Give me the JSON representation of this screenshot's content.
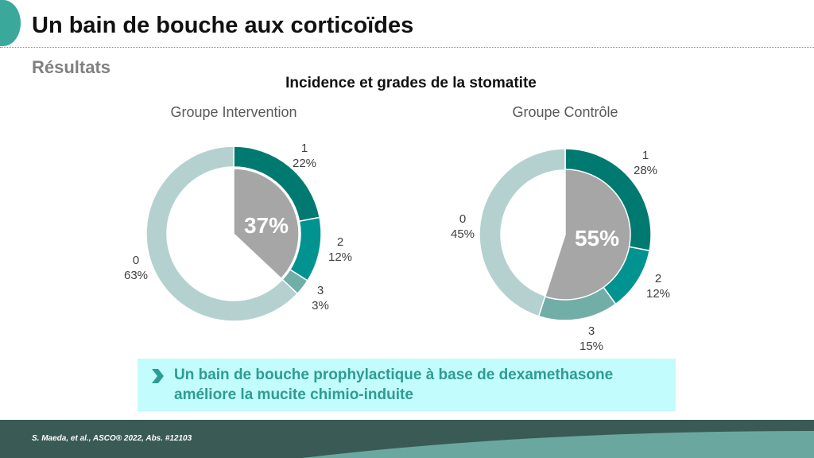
{
  "slide": {
    "title": "Un bain de bouche aux corticoïdes",
    "subtitle": "Résultats",
    "colors": {
      "accent": "#3aa89b",
      "dark_footer": "#3a5a55",
      "light_footer": "#6aa89f"
    }
  },
  "chart_data": {
    "type": "donut",
    "title": "Incidence et grades de la stomatite",
    "charts": [
      {
        "name": "Groupe Intervention",
        "center_value": "37%",
        "slices": [
          {
            "label": "1",
            "pct_label": "22%",
            "value": 22,
            "color": "#007a70"
          },
          {
            "label": "2",
            "pct_label": "12%",
            "value": 12,
            "color": "#009390"
          },
          {
            "label": "3",
            "pct_label": "3%",
            "value": 3,
            "color": "#72aea8"
          },
          {
            "label": "0",
            "pct_label": "63%",
            "value": 63,
            "color": "#b4d1d0"
          }
        ]
      },
      {
        "name": "Groupe Contrôle",
        "center_value": "55%",
        "slices": [
          {
            "label": "1",
            "pct_label": "28%",
            "value": 28,
            "color": "#007a70"
          },
          {
            "label": "2",
            "pct_label": "12%",
            "value": 12,
            "color": "#009390"
          },
          {
            "label": "3",
            "pct_label": "15%",
            "value": 15,
            "color": "#72aea8"
          },
          {
            "label": "0",
            "pct_label": "45%",
            "value": 45,
            "color": "#b4d1d0"
          }
        ]
      }
    ]
  },
  "callout": {
    "line1": "Un bain de bouche prophylactique à base de dexamethasone",
    "line2": "améliore la mucite chimio-induite"
  },
  "footer": {
    "citation": "S. Maeda, et al., ASCO® 2022, Abs. #12103"
  }
}
